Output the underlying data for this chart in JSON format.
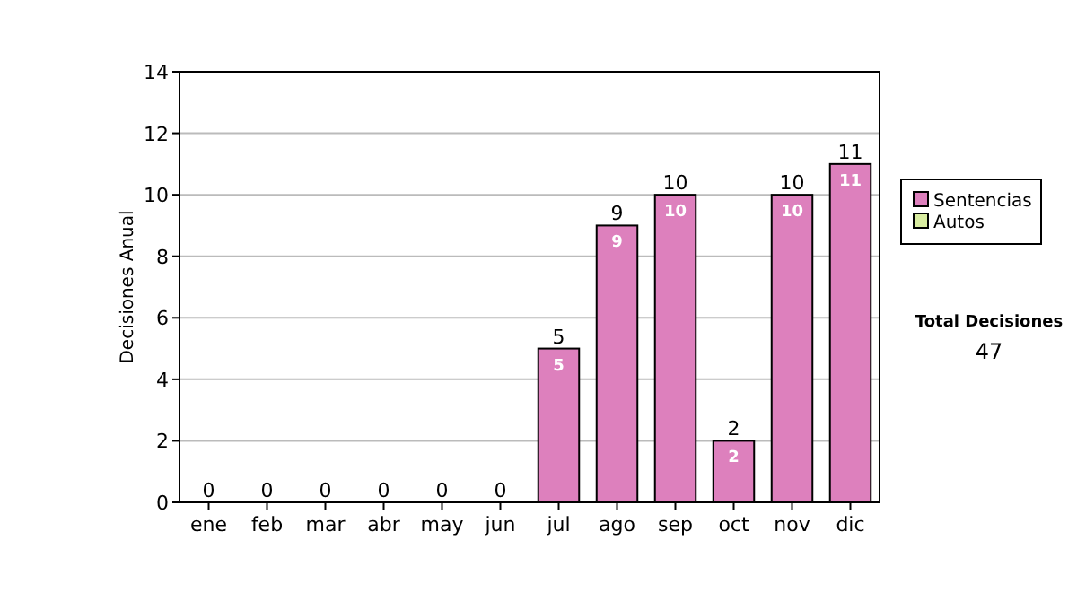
{
  "chart_data": {
    "type": "bar",
    "stacked": true,
    "ylabel": "Decisiones Anual",
    "categories": [
      "ene",
      "feb",
      "mar",
      "abr",
      "may",
      "jun",
      "jul",
      "ago",
      "sep",
      "oct",
      "nov",
      "dic"
    ],
    "series": [
      {
        "name": "Sentencias",
        "color": "#dd80bd",
        "values": [
          0,
          0,
          0,
          0,
          0,
          0,
          5,
          9,
          10,
          2,
          10,
          11
        ],
        "value_labels": [
          null,
          null,
          null,
          null,
          null,
          null,
          "5",
          "9",
          "10",
          "2",
          "10",
          "11"
        ]
      },
      {
        "name": "Autos",
        "color": "#d8eca0",
        "values": [
          0,
          0,
          0,
          0,
          0,
          0,
          0,
          0,
          0,
          0,
          0,
          0
        ]
      }
    ],
    "totals": [
      "0",
      "0",
      "0",
      "0",
      "0",
      "0",
      "5",
      "9",
      "10",
      "2",
      "10",
      "11"
    ],
    "ylim": [
      0,
      14
    ],
    "yticks": [
      0,
      2,
      4,
      6,
      8,
      10,
      12,
      14
    ],
    "grid": "y",
    "legend": "right",
    "annotations": [
      "Total Decisiones",
      "47"
    ]
  }
}
